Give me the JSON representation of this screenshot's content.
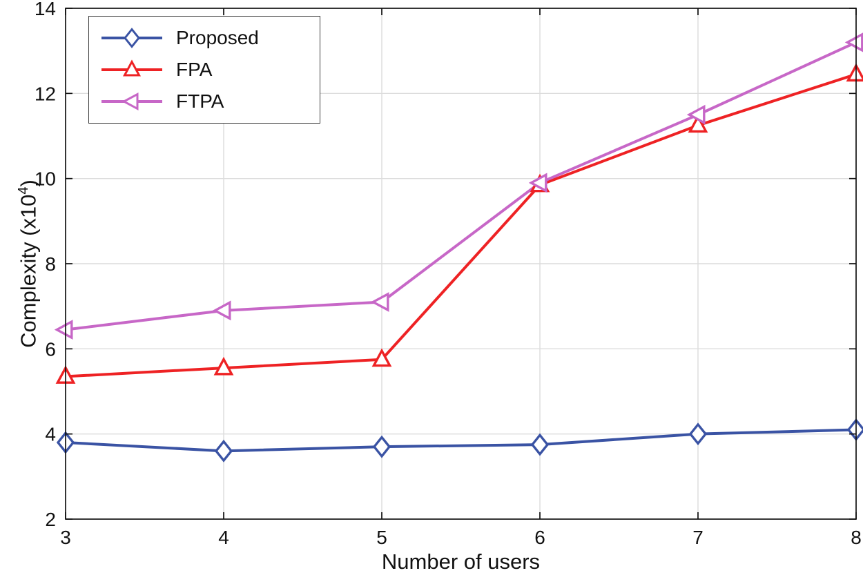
{
  "figure": {
    "background": "#ffffff"
  },
  "chart_data": {
    "type": "line",
    "title": "",
    "xlabel": "Number of users",
    "ylabel_prefix": "Complexity (x10",
    "ylabel_sup": "4",
    "ylabel_suffix": ")",
    "xlim": [
      3,
      8
    ],
    "ylim": [
      2,
      14
    ],
    "xticks": [
      3,
      4,
      5,
      6,
      7,
      8
    ],
    "yticks": [
      2,
      4,
      6,
      8,
      10,
      12,
      14
    ],
    "grid": true,
    "grid_color": "#dcdcdc",
    "axis_color": "#111111",
    "legend_position": "top-left",
    "x": [
      3,
      4,
      5,
      6,
      7,
      8
    ],
    "series": [
      {
        "name": "Proposed",
        "color": "#3A53A4",
        "marker": "diamond",
        "values": [
          3.8,
          3.6,
          3.7,
          3.75,
          4.0,
          4.1
        ]
      },
      {
        "name": "FPA",
        "color": "#EE2224",
        "marker": "triangle-up",
        "values": [
          5.35,
          5.55,
          5.75,
          9.85,
          11.25,
          12.45
        ]
      },
      {
        "name": "FTPA",
        "color": "#C767C7",
        "marker": "triangle-left",
        "values": [
          6.45,
          6.9,
          7.1,
          9.9,
          11.5,
          13.2
        ]
      }
    ]
  }
}
